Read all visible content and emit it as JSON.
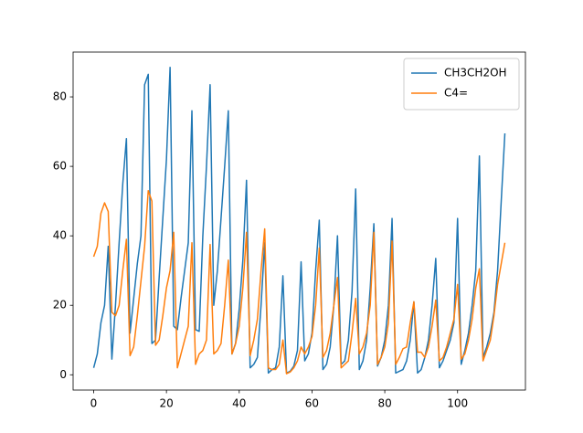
{
  "chart_data": {
    "type": "line",
    "x": [
      0,
      1,
      2,
      3,
      4,
      5,
      6,
      7,
      8,
      9,
      10,
      11,
      12,
      13,
      14,
      15,
      16,
      17,
      18,
      19,
      20,
      21,
      22,
      23,
      24,
      25,
      26,
      27,
      28,
      29,
      30,
      31,
      32,
      33,
      34,
      35,
      36,
      37,
      38,
      39,
      40,
      41,
      42,
      43,
      44,
      45,
      46,
      47,
      48,
      49,
      50,
      51,
      52,
      53,
      54,
      55,
      56,
      57,
      58,
      59,
      60,
      61,
      62,
      63,
      64,
      65,
      66,
      67,
      68,
      69,
      70,
      71,
      72,
      73,
      74,
      75,
      76,
      77,
      78,
      79,
      80,
      81,
      82,
      83,
      84,
      85,
      86,
      87,
      88,
      89,
      90,
      91,
      92,
      93,
      94,
      95,
      96,
      97,
      98,
      99,
      100,
      101,
      102,
      103,
      104,
      105,
      106,
      107,
      108,
      109,
      110,
      111,
      112,
      113
    ],
    "series": [
      {
        "name": "CH3CH2OH",
        "color": "#1f77b4",
        "values": [
          2,
          6,
          15,
          20,
          37,
          4.5,
          20,
          38,
          55,
          68,
          12,
          22,
          32,
          40,
          83.5,
          86.5,
          9,
          10,
          28,
          45,
          62,
          88.5,
          14,
          13,
          22,
          30,
          38,
          76,
          13,
          12.5,
          40,
          60,
          83.5,
          20,
          30,
          45,
          60,
          76,
          6,
          9,
          19,
          33,
          56,
          2,
          3,
          5,
          20,
          38,
          0.5,
          1.5,
          2,
          8,
          28.5,
          0.5,
          1,
          2.5,
          7,
          32.5,
          4,
          6,
          12,
          30,
          44.5,
          1.5,
          3,
          8,
          20,
          40,
          3,
          4,
          10,
          24,
          53.5,
          1.5,
          4,
          10,
          25,
          43.5,
          2.5,
          5,
          10,
          20,
          45,
          0.5,
          1,
          1.5,
          4,
          10,
          21,
          0.5,
          1.5,
          5,
          10,
          20,
          33.5,
          2,
          4,
          7,
          10,
          15,
          45,
          3,
          7,
          12,
          20,
          30,
          63,
          5,
          8,
          12,
          18,
          30,
          50,
          69.5
        ]
      },
      {
        "name": "C4=",
        "color": "#ff7f0e",
        "values": [
          34,
          37,
          46.5,
          49.5,
          47,
          18,
          17,
          20,
          30,
          39,
          5.5,
          8,
          17,
          27,
          37,
          53,
          50,
          8.5,
          10,
          17,
          25,
          30,
          41,
          2,
          6,
          10,
          14,
          38,
          3,
          6,
          7,
          10,
          37.5,
          6,
          7,
          9,
          20,
          33,
          6,
          9,
          14,
          25,
          41,
          5.5,
          10,
          16,
          30,
          42,
          2,
          1.5,
          1.5,
          3,
          10,
          0.3,
          0.8,
          2,
          4,
          8,
          6,
          8,
          11,
          20,
          36.5,
          5,
          7,
          12,
          20,
          28,
          2,
          3,
          4,
          12,
          22,
          6,
          8,
          12,
          20,
          41,
          3,
          5,
          8,
          15,
          38.5,
          3,
          5,
          7.5,
          8,
          15,
          21,
          6.5,
          6.5,
          5,
          8,
          14,
          21.5,
          4,
          5,
          8,
          12,
          16,
          26,
          4.5,
          6,
          10,
          16,
          25,
          30.5,
          4,
          7,
          10,
          17,
          26,
          32,
          38
        ]
      }
    ],
    "xlim": [
      -5.65,
      118.65
    ],
    "ylim": [
      -4.4,
      92.9
    ],
    "xticks": [
      0,
      20,
      40,
      60,
      80,
      100
    ],
    "yticks": [
      0,
      20,
      40,
      60,
      80
    ],
    "legend": "upper right"
  }
}
